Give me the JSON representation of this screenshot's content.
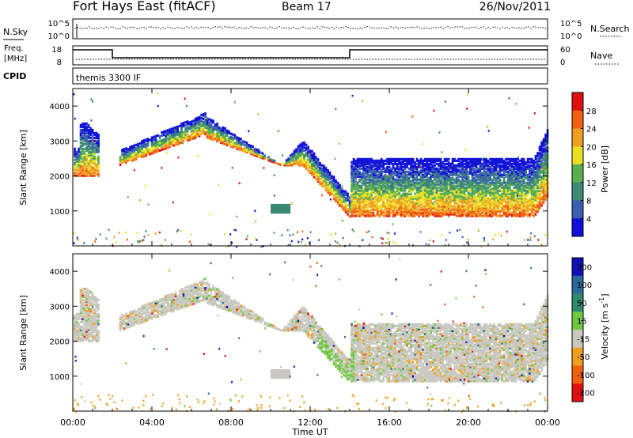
{
  "header": {
    "station": "Fort Hays East (fitACF)",
    "beam": "Beam 17",
    "date": "26/Nov/2011"
  },
  "noise_panel": {
    "left_label": "N.Sky",
    "right_label": "N.Search",
    "left_ticks": [
      "10^5",
      "10^0"
    ],
    "right_ticks": [
      "10^5",
      "10^0"
    ]
  },
  "freq_panel": {
    "left_label_1": "Freq.",
    "left_label_2": "[MHz]",
    "right_label": "Nave",
    "left_ticks": [
      "18",
      "8"
    ],
    "right_ticks": [
      "60",
      "0"
    ]
  },
  "cpid_panel": {
    "label": "CPID",
    "program": "themis 3300 IF"
  },
  "x_axis": {
    "label": "Time UT",
    "ticks": [
      "00:00",
      "04:00",
      "08:00",
      "12:00",
      "16:00",
      "20:00",
      "00:00"
    ]
  },
  "chart_data": [
    {
      "type": "heatmap",
      "name": "power",
      "ylabel": "Slant Range [km]",
      "y_ticks": [
        1000,
        2000,
        3000,
        4000
      ],
      "ylim": [
        0,
        4500
      ],
      "colorbar_label": "Power [dB]",
      "colorbar_ticks": [
        "4",
        "8",
        "12",
        "16",
        "20",
        "24",
        "28"
      ],
      "colorbar_range": [
        0,
        32
      ],
      "colors": [
        "#1010d8",
        "#3a5fb0",
        "#3b8a74",
        "#58b050",
        "#e8e020",
        "#f0a020",
        "#f06010",
        "#e01010"
      ]
    },
    {
      "type": "heatmap",
      "name": "velocity",
      "ylabel": "Slant Range [km]",
      "y_ticks": [
        1000,
        2000,
        3000,
        4000
      ],
      "ylim": [
        0,
        4500
      ],
      "colorbar_label": "Velocity [m s^-1]",
      "colorbar_label_parts": [
        "Velocity [m s",
        "-1",
        "]"
      ],
      "colorbar_ticks": [
        "200",
        "100",
        "50",
        "15",
        "-15",
        "-50",
        "-100",
        "-200"
      ],
      "colors": [
        "#1010b8",
        "#2a6a98",
        "#2e8a6a",
        "#70c840",
        "#c8c8c0",
        "#f0a020",
        "#f06010",
        "#e01010"
      ]
    }
  ]
}
